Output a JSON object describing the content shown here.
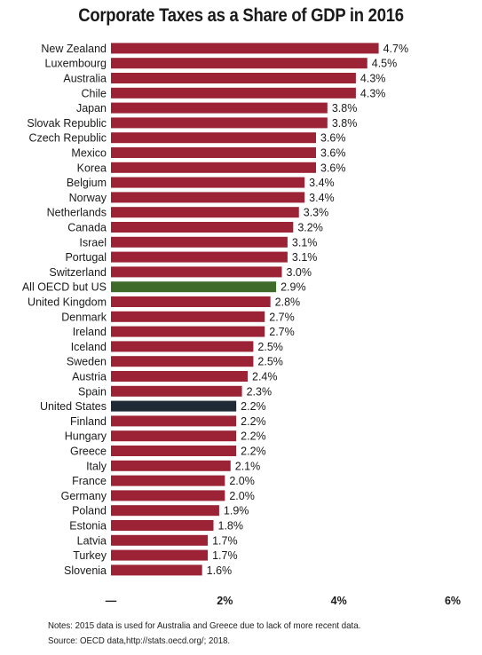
{
  "chart_data": {
    "type": "bar",
    "orientation": "horizontal",
    "title": "Corporate Taxes as a Share of GDP in 2016",
    "categories": [
      "New Zealand",
      "Luxembourg",
      "Australia",
      "Chile",
      "Japan",
      "Slovak Republic",
      "Czech Republic",
      "Mexico",
      "Korea",
      "Belgium",
      "Norway",
      "Netherlands",
      "Canada",
      "Israel",
      "Portugal",
      "Switzerland",
      "All OECD but US",
      "United Kingdom",
      "Denmark",
      "Ireland",
      "Iceland",
      "Sweden",
      "Austria",
      "Spain",
      "United States",
      "Finland",
      "Hungary",
      "Greece",
      "Italy",
      "France",
      "Germany",
      "Poland",
      "Estonia",
      "Latvia",
      "Turkey",
      "Slovenia"
    ],
    "values": [
      4.7,
      4.5,
      4.3,
      4.3,
      3.8,
      3.8,
      3.6,
      3.6,
      3.6,
      3.4,
      3.4,
      3.3,
      3.2,
      3.1,
      3.1,
      3.0,
      2.9,
      2.8,
      2.7,
      2.7,
      2.5,
      2.5,
      2.4,
      2.3,
      2.2,
      2.2,
      2.2,
      2.2,
      2.1,
      2.0,
      2.0,
      1.9,
      1.8,
      1.7,
      1.7,
      1.6
    ],
    "value_labels": [
      "4.7%",
      "4.5%",
      "4.3%",
      "4.3%",
      "3.8%",
      "3.8%",
      "3.6%",
      "3.6%",
      "3.6%",
      "3.4%",
      "3.4%",
      "3.3%",
      "3.2%",
      "3.1%",
      "3.1%",
      "3.0%",
      "2.9%",
      "2.8%",
      "2.7%",
      "2.7%",
      "2.5%",
      "2.5%",
      "2.4%",
      "2.3%",
      "2.2%",
      "2.2%",
      "2.2%",
      "2.2%",
      "2.1%",
      "2.0%",
      "2.0%",
      "1.9%",
      "1.8%",
      "1.7%",
      "1.7%",
      "1.6%"
    ],
    "x_ticks": [
      "—",
      "2%",
      "4%",
      "6%"
    ],
    "x_tick_values": [
      0,
      2,
      4,
      6
    ],
    "xlim": [
      0,
      6
    ],
    "grid": false,
    "colors": {
      "default": "#9b2335",
      "All OECD but US": "#3e6b2a",
      "United States": "#1f2a36"
    }
  },
  "notes": {
    "note": "Notes: 2015 data is used for Australia and Greece due to lack of more recent data.",
    "source": "Source: OECD data,http://stats.oecd.org/; 2018."
  }
}
